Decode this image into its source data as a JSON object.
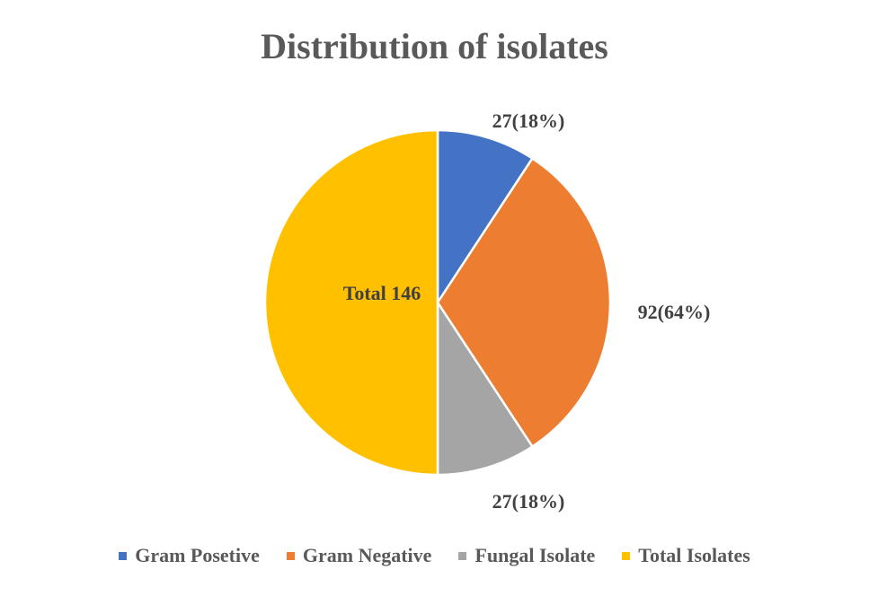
{
  "chart_data": {
    "type": "pie",
    "title": "Distribution of isolates",
    "slices": [
      {
        "name": "Gram Posetive",
        "value": 27,
        "label": "27(18%)",
        "color": "#4472C4"
      },
      {
        "name": "Gram Negative",
        "value": 92,
        "label": "92(64%)",
        "color": "#ED7D31"
      },
      {
        "name": "Fungal Isolate",
        "value": 27,
        "label": "27(18%)",
        "color": "#A5A5A5"
      },
      {
        "name": "Total Isolates",
        "value": 146,
        "label": "Total 146",
        "color": "#FFC000"
      }
    ],
    "legend_position": "bottom"
  }
}
